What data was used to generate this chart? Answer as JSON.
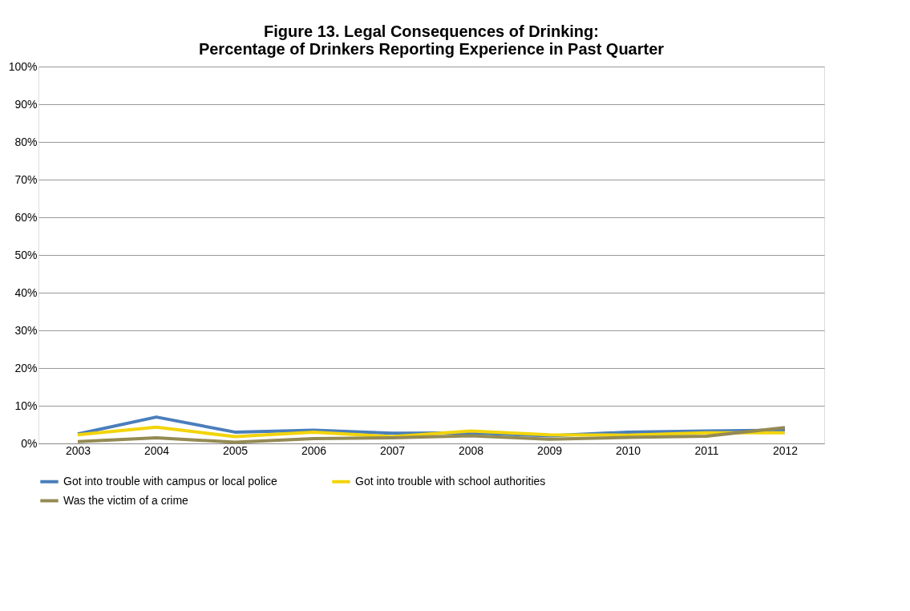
{
  "chart_data": {
    "type": "line",
    "title": [
      "Figure 13.  Legal Consequences of Drinking:",
      "Percentage of Drinkers Reporting Experience in Past Quarter"
    ],
    "categories": [
      "2003",
      "2004",
      "2005",
      "2006",
      "2007",
      "2008",
      "2009",
      "2010",
      "2011",
      "2012"
    ],
    "series": [
      {
        "name": "Got into trouble with campus or local police",
        "color": "#4a7ebb",
        "values": [
          2.5,
          7.0,
          3.0,
          3.5,
          2.7,
          2.8,
          2.0,
          3.0,
          3.3,
          3.5
        ]
      },
      {
        "name": "Got into trouble with school authorities",
        "color": "#f2d40a",
        "values": [
          2.3,
          4.3,
          1.8,
          3.0,
          1.8,
          3.3,
          2.3,
          2.2,
          2.8,
          2.8
        ]
      },
      {
        "name": "Was the victim of a crime",
        "color": "#948a54",
        "values": [
          0.5,
          1.5,
          0.3,
          1.3,
          1.5,
          2.0,
          1.1,
          1.6,
          1.9,
          4.2
        ]
      }
    ],
    "ylim": [
      0,
      100
    ],
    "yticks": [
      {
        "value": 0,
        "label": "0%"
      },
      {
        "value": 10,
        "label": "10%"
      },
      {
        "value": 20,
        "label": "20%"
      },
      {
        "value": 30,
        "label": "30%"
      },
      {
        "value": 40,
        "label": "40%"
      },
      {
        "value": 50,
        "label": "50%"
      },
      {
        "value": 60,
        "label": "60%"
      },
      {
        "value": 70,
        "label": "70%"
      },
      {
        "value": 80,
        "label": "80%"
      },
      {
        "value": 90,
        "label": "90%"
      },
      {
        "value": 100,
        "label": "100%"
      }
    ],
    "grid": "y",
    "legend": "bottom",
    "marker": "none",
    "line_style": "solid"
  }
}
